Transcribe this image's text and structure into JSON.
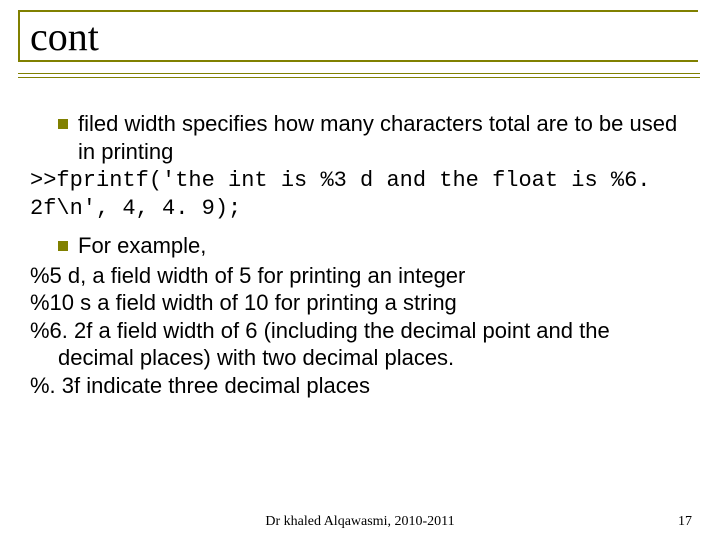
{
  "accent_color": "#808000",
  "title": "cont",
  "hline_tops": [
    73,
    77
  ],
  "bullets": {
    "b1": "filed width specifies how many characters total are to be used in printing",
    "b2": "For example,"
  },
  "code1": ">>fprintf('the int is %3 d and the float is %6. 2f\\n', 4, 4. 9);",
  "lines": {
    "l1": "%5 d, a field width of 5 for printing an integer",
    "l2": "%10 s a field width of 10 for printing a string",
    "l3": "%6. 2f a field width of 6 (including the decimal point and the decimal places) with two decimal places.",
    "l4": "%. 3f indicate three decimal places"
  },
  "footer": "Dr khaled Alqawasmi, 2010-2011",
  "page_number": "17"
}
